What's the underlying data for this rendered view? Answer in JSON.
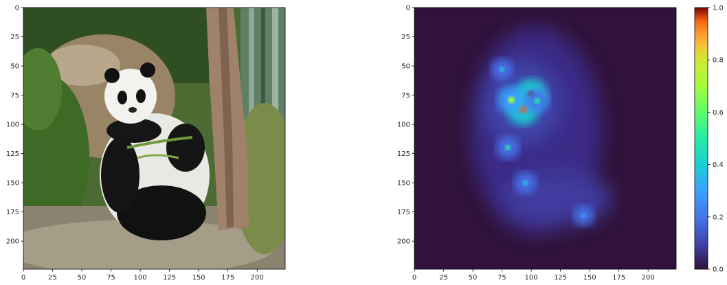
{
  "chart_data": [
    {
      "type": "image",
      "title": "",
      "xlabel": "",
      "ylabel": "",
      "xlim": [
        0,
        224
      ],
      "ylim": [
        224,
        0
      ],
      "x_ticks": [
        0,
        25,
        50,
        75,
        100,
        125,
        150,
        175,
        200
      ],
      "y_ticks": [
        0,
        25,
        50,
        75,
        100,
        125,
        150,
        175,
        200
      ],
      "subject": "giant panda sitting against a fallen log beside a tree trunk, surrounded by green foliage and bamboo"
    },
    {
      "type": "heatmap",
      "title": "",
      "xlabel": "",
      "ylabel": "",
      "xlim": [
        0,
        224
      ],
      "ylim": [
        224,
        0
      ],
      "x_ticks": [
        0,
        25,
        50,
        75,
        100,
        125,
        150,
        175,
        200
      ],
      "y_ticks": [
        0,
        25,
        50,
        75,
        100,
        125,
        150,
        175,
        200
      ],
      "colormap": "turbo",
      "colorbar": {
        "range": [
          0.0,
          1.0
        ],
        "ticks": [
          0.0,
          0.2,
          0.4,
          0.6,
          0.8,
          1.0
        ]
      },
      "hotspots": [
        {
          "x": 100,
          "y": 75,
          "value": 1.0
        },
        {
          "x": 93,
          "y": 87,
          "value": 0.95
        },
        {
          "x": 83,
          "y": 79,
          "value": 0.75
        },
        {
          "x": 105,
          "y": 80,
          "value": 0.55
        },
        {
          "x": 75,
          "y": 53,
          "value": 0.4
        },
        {
          "x": 80,
          "y": 120,
          "value": 0.5
        },
        {
          "x": 95,
          "y": 150,
          "value": 0.45
        },
        {
          "x": 145,
          "y": 178,
          "value": 0.35
        }
      ]
    }
  ],
  "colors": {
    "foliage": "#3e6a2a",
    "panda_white": "#eeeeec",
    "panda_black": "#111111",
    "trunk": "#a0826a",
    "heat_background": "#30123b"
  }
}
